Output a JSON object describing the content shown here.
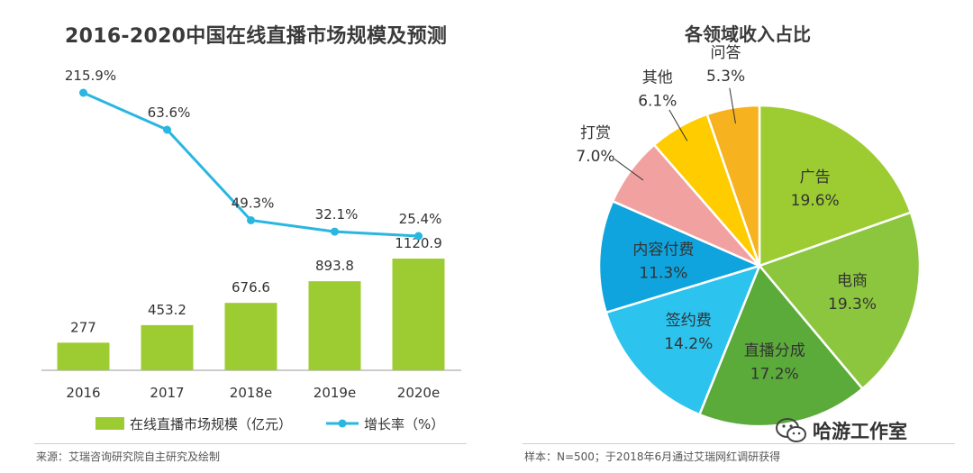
{
  "left_chart": {
    "title": "2016-2020中国在线直播市场规模及预测",
    "source": "来源：艾瑞咨询研究院自主研究及绘制",
    "legend": {
      "bar_label": "在线直播市场规模（亿元）",
      "line_label": "增长率（%）"
    }
  },
  "right_chart": {
    "title": "各领域收入占比",
    "source": "样本：N=500；于2018年6月通过艾瑞网红调研获得"
  },
  "watermark": {
    "text": "哈游工作室",
    "icon": "wechat-icon"
  },
  "colors": {
    "bar": "#9ccc32",
    "line": "#29b6e0"
  },
  "chart_data": [
    {
      "type": "bar",
      "title": "2016-2020中国在线直播市场规模及预测",
      "categories": [
        "2016",
        "2017",
        "2018e",
        "2019e",
        "2020e"
      ],
      "series": [
        {
          "name": "在线直播市场规模（亿元）",
          "type": "bar",
          "values": [
            277,
            453.2,
            676.6,
            893.8,
            1120.9
          ],
          "labels": [
            "277",
            "453.2",
            "676.6",
            "893.8",
            "1120.9"
          ],
          "color": "#9ccc32"
        },
        {
          "name": "增长率（%）",
          "type": "line",
          "values": [
            215.9,
            63.6,
            49.3,
            32.1,
            25.4
          ],
          "labels": [
            "215.9%",
            "63.6%",
            "49.3%",
            "32.1%",
            "25.4%"
          ],
          "color": "#29b6e0"
        }
      ],
      "legend_position": "bottom",
      "grid": false
    },
    {
      "type": "pie",
      "title": "各领域收入占比",
      "slices": [
        {
          "label": "广告",
          "value": 19.6,
          "display": "19.6%",
          "color": "#9ccc32"
        },
        {
          "label": "电商",
          "value": 19.3,
          "display": "19.3%",
          "color": "#8cc63e"
        },
        {
          "label": "直播分成",
          "value": 17.2,
          "display": "17.2%",
          "color": "#5bab3a"
        },
        {
          "label": "签约费",
          "value": 14.2,
          "display": "14.2%",
          "color": "#2cc3ee"
        },
        {
          "label": "内容付费",
          "value": 11.3,
          "display": "11.3%",
          "color": "#0fa4dd"
        },
        {
          "label": "打赏",
          "value": 7.0,
          "display": "7.0%",
          "color": "#f2a1a1"
        },
        {
          "label": "其他",
          "value": 6.1,
          "display": "6.1%",
          "color": "#ffcc00"
        },
        {
          "label": "问答",
          "value": 5.3,
          "display": "5.3%",
          "color": "#f6b21f"
        }
      ],
      "legend_position": "none"
    }
  ]
}
